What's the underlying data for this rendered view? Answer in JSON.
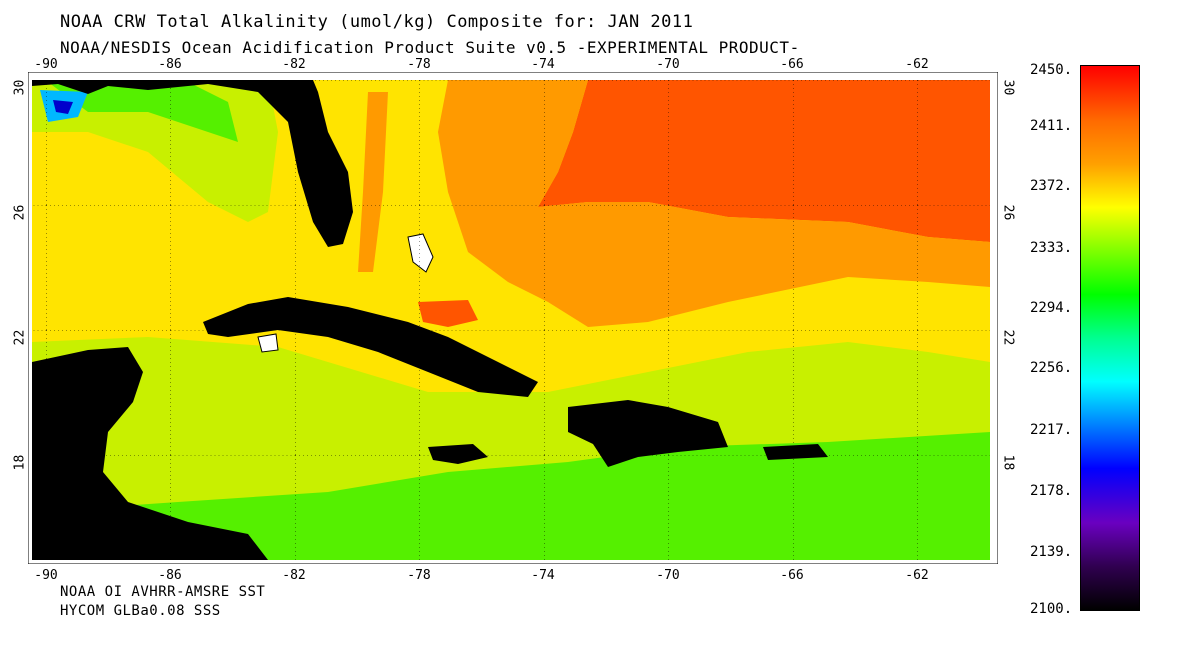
{
  "title": "NOAA CRW Total Alkalinity (umol/kg) Composite for: JAN 2011",
  "subtitle": "NOAA/NESDIS Ocean Acidification Product Suite  v0.5 -EXPERIMENTAL PRODUCT-",
  "sources": [
    "NOAA OI AVHRR-AMSRE SST",
    "HYCOM GLBa0.08 SSS"
  ],
  "longitude_ticks": [
    "-90",
    "-86",
    "-82",
    "-78",
    "-74",
    "-70",
    "-66",
    "-62"
  ],
  "latitude_ticks": [
    "30",
    "26",
    "22",
    "18"
  ],
  "colorbar": {
    "labels": [
      "2450.",
      "2411.",
      "2372.",
      "2333.",
      "2294.",
      "2256.",
      "2217.",
      "2178.",
      "2139.",
      "2100."
    ],
    "min": 2100,
    "max": 2450
  },
  "colors": {
    "land": "#000000",
    "ocean_low": "#84e600",
    "ocean_mid": "#ffe400",
    "ocean_high": "#ff5500"
  }
}
